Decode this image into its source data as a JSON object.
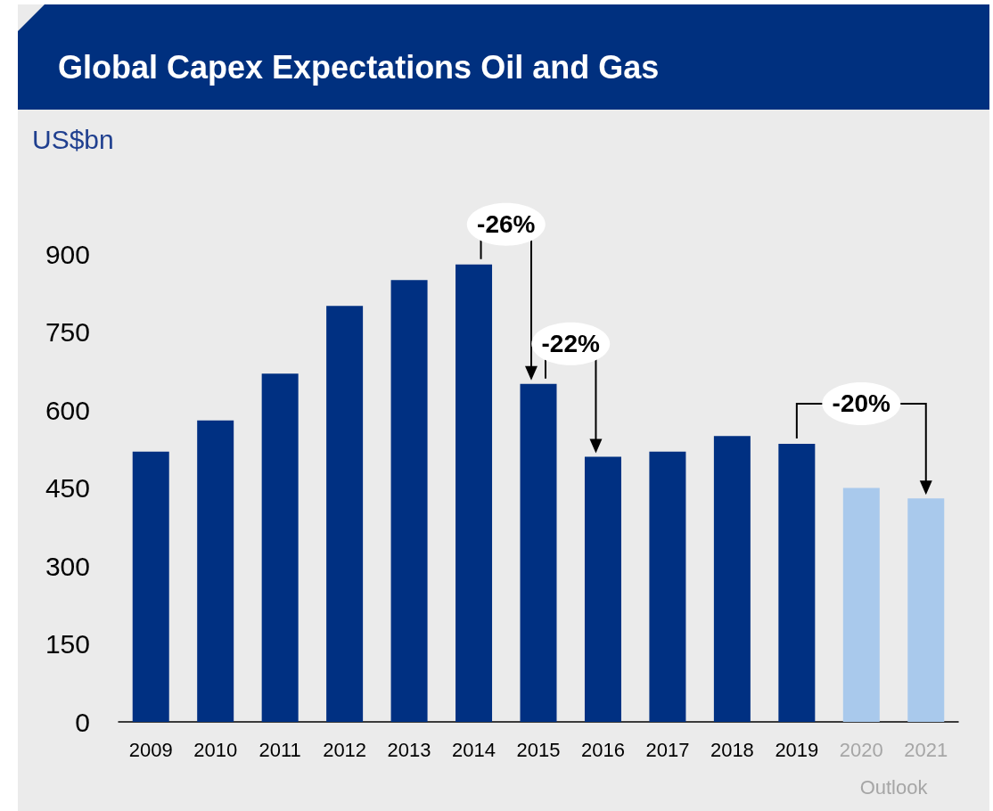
{
  "chart_data": {
    "type": "bar",
    "title": "Global Capex Expectations Oil and Gas",
    "ylabel": "US$bn",
    "categories": [
      "2009",
      "2010",
      "2011",
      "2012",
      "2013",
      "2014",
      "2015",
      "2016",
      "2017",
      "2018",
      "2019",
      "2020",
      "2021"
    ],
    "values": [
      520,
      580,
      670,
      800,
      850,
      880,
      650,
      510,
      520,
      550,
      535,
      450,
      430
    ],
    "colors": [
      "#003082",
      "#003082",
      "#003082",
      "#003082",
      "#003082",
      "#003082",
      "#003082",
      "#003082",
      "#003082",
      "#003082",
      "#003082",
      "#a9c9ec",
      "#a9c9ec"
    ],
    "ylim": [
      0,
      900
    ],
    "yticks": [
      0,
      150,
      300,
      450,
      600,
      750,
      900
    ],
    "grid": false,
    "annotations": [
      {
        "text": "-26%",
        "x": "2014",
        "y": 880
      },
      {
        "text": "-22%",
        "x": "2015",
        "y": 650
      },
      {
        "text": "-20%",
        "x": "2019",
        "y": 535
      },
      "Outlook"
    ]
  }
}
